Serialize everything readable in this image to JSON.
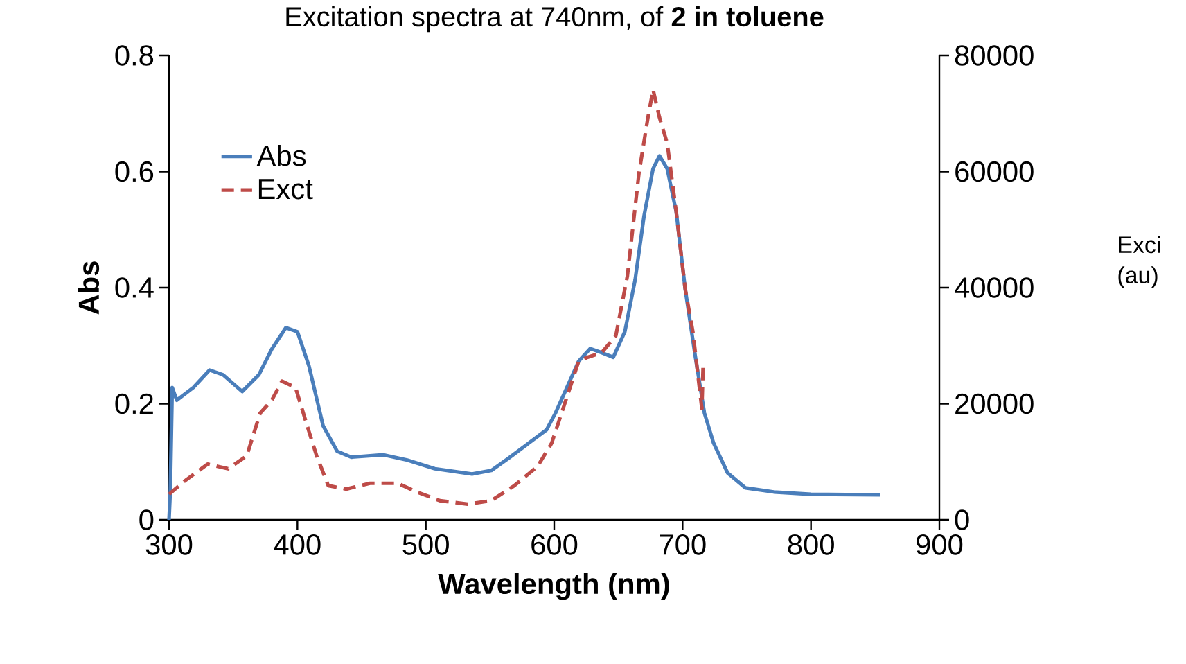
{
  "chart_data": {
    "type": "line",
    "title": "Excitation spectra at 740nm, of **2 in toluene**",
    "xlabel": "Wavelength (nm)",
    "ylabel": "Abs",
    "y2label": "Exci (au)",
    "xlim": [
      300,
      900
    ],
    "xticks": [
      300,
      400,
      500,
      600,
      700,
      800,
      900
    ],
    "ylim": [
      0,
      0.8
    ],
    "yticks": [
      0,
      0.2,
      0.4,
      0.6,
      0.8
    ],
    "y2lim": [
      0,
      80000
    ],
    "y2ticks": [
      0,
      20000,
      40000,
      60000,
      80000
    ],
    "legend": "top left",
    "marker": "none",
    "series": [
      {
        "name": "Abs",
        "color": "#4a7ebb",
        "line_style": "solid",
        "x": [
          300,
          301,
          302.5,
          306,
          319,
          331.5,
          342,
          357,
          370,
          380,
          391,
          400,
          409,
          420,
          431,
          442,
          467,
          485.5,
          507,
          536,
          551,
          565,
          580,
          594,
          601,
          619,
          628,
          637,
          646,
          655,
          663,
          670,
          677,
          682,
          688,
          695,
          702,
          710,
          717,
          724,
          735,
          749,
          771,
          800,
          854
        ],
        "values": [
          0,
          0.05,
          0.228,
          0.206,
          0.228,
          0.258,
          0.25,
          0.221,
          0.25,
          0.294,
          0.331,
          0.324,
          0.265,
          0.162,
          0.118,
          0.108,
          0.112,
          0.103,
          0.088,
          0.079,
          0.085,
          0.107,
          0.132,
          0.155,
          0.184,
          0.273,
          0.295,
          0.288,
          0.28,
          0.324,
          0.413,
          0.524,
          0.605,
          0.627,
          0.605,
          0.531,
          0.398,
          0.28,
          0.184,
          0.133,
          0.081,
          0.055,
          0.048,
          0.044,
          0.043
        ]
      },
      {
        "name": "Exct",
        "color": "#be4b48",
        "line_style": "dashed",
        "axis": "y2",
        "x": [
          300,
          311.6,
          330,
          346,
          360.5,
          371,
          380,
          388,
          398.5,
          407.6,
          415,
          424,
          438,
          456.5,
          478,
          493,
          511,
          532.6,
          551,
          569,
          587,
          598,
          608,
          619,
          626,
          637,
          648,
          657,
          666,
          673,
          677,
          682,
          688,
          695,
          702,
          708,
          713,
          715,
          716
        ],
        "values": [
          4400,
          6600,
          9600,
          8800,
          11000,
          18400,
          20600,
          23900,
          22800,
          16200,
          11000,
          5900,
          5300,
          6300,
          6300,
          4800,
          3300,
          2700,
          3300,
          5900,
          9200,
          13200,
          19900,
          27300,
          28000,
          28800,
          31700,
          42000,
          59700,
          69300,
          74100,
          69300,
          64900,
          53100,
          39800,
          32400,
          22900,
          19200,
          26500
        ]
      }
    ]
  }
}
